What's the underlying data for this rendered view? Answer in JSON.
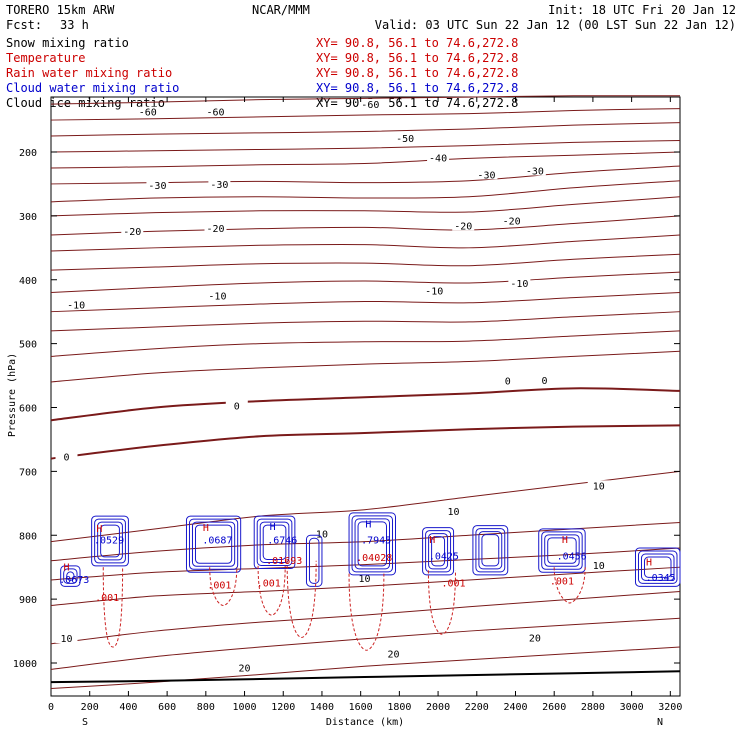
{
  "header": {
    "model": "TORERO  15km ARW",
    "center": "NCAR/MMM",
    "init": "Init: 18 UTC Fri 20 Jan 12",
    "fcst_label": "Fcst:",
    "fcst_value": "33 h",
    "valid": "Valid: 03 UTC Sun 22 Jan 12 (00 LST Sun 22 Jan 12)"
  },
  "fields": [
    {
      "name": "Snow mixing ratio",
      "xy": "XY=  90.8, 56.1 to  74.6,272.8",
      "color": "#000000",
      "xy_color": "#cc0000"
    },
    {
      "name": "Temperature",
      "xy": "XY=  90.8, 56.1 to  74.6,272.8",
      "color": "#cc0000",
      "xy_color": "#cc0000"
    },
    {
      "name": "Rain water mixing ratio",
      "xy": "XY=  90.8, 56.1 to  74.6,272.8",
      "color": "#cc0000",
      "xy_color": "#cc0000"
    },
    {
      "name": "Cloud water mixing ratio",
      "xy": "XY=  90.8, 56.1 to  74.6,272.8",
      "color": "#0000cc",
      "xy_color": "#0000cc"
    },
    {
      "name": "Cloud ice mixing ratio",
      "xy": "XY=  90.8, 56.1 to  74.6,272.8",
      "color": "#000000",
      "xy_color": "#000000"
    }
  ],
  "colors": {
    "temperature": "#7a1a1a",
    "rain": "#cc2222",
    "cloud_water": "#1a1acc",
    "cloud_ice": "#222222",
    "axis": "#000000"
  },
  "chart_data": {
    "type": "contour-cross-section",
    "xlabel": "Distance (km)",
    "ylabel": "Pressure (hPa)",
    "xlim": [
      0,
      3250
    ],
    "ylim_hpa": [
      1050,
      100
    ],
    "x_ticks": [
      0,
      200,
      400,
      600,
      800,
      1000,
      1200,
      1400,
      1600,
      1800,
      2000,
      2200,
      2400,
      2600,
      2800,
      3000,
      3200
    ],
    "y_ticks": [
      200,
      300,
      400,
      500,
      600,
      700,
      800,
      900,
      1000
    ],
    "endpoints": {
      "left": "S",
      "right": "N"
    },
    "temperature_contours": [
      {
        "p": [
          125,
          122,
          118,
          116,
          114,
          112,
          112
        ],
        "label": "-60",
        "label_at": [
          [
            500,
            140
          ],
          [
            850,
            140
          ],
          [
            1650,
            128
          ]
        ]
      },
      {
        "p": [
          150,
          148,
          145,
          142,
          140,
          135,
          132
        ],
        "label": "-60",
        "label_at": []
      },
      {
        "p": [
          175,
          172,
          170,
          168,
          164,
          158,
          154
        ],
        "label": "-50",
        "label_at": [
          [
            1830,
            181
          ]
        ]
      },
      {
        "p": [
          200,
          198,
          196,
          194,
          190,
          185,
          182
        ],
        "label": "",
        "label_at": []
      },
      {
        "p": [
          225,
          223,
          220,
          218,
          210,
          205,
          200
        ],
        "label": "-40",
        "label_at": [
          [
            2000,
            212
          ]
        ]
      },
      {
        "p": [
          250,
          248,
          246,
          248,
          245,
          232,
          222
        ],
        "label": "",
        "label_at": []
      },
      {
        "p": [
          278,
          272,
          270,
          272,
          270,
          256,
          245
        ],
        "label": "-30",
        "label_at": [
          [
            550,
            255
          ],
          [
            870,
            253
          ],
          [
            2250,
            238
          ],
          [
            2500,
            232
          ]
        ]
      },
      {
        "p": [
          300,
          295,
          292,
          292,
          294,
          282,
          270
        ],
        "label": "",
        "label_at": []
      },
      {
        "p": [
          330,
          324,
          320,
          318,
          322,
          312,
          300
        ],
        "label": "-20",
        "label_at": [
          [
            420,
            327
          ],
          [
            850,
            322
          ],
          [
            2130,
            318
          ],
          [
            2380,
            310
          ]
        ]
      },
      {
        "p": [
          355,
          350,
          346,
          345,
          350,
          340,
          330
        ],
        "label": "",
        "label_at": []
      },
      {
        "p": [
          385,
          380,
          375,
          374,
          378,
          368,
          360
        ],
        "label": "",
        "label_at": []
      },
      {
        "p": [
          420,
          412,
          405,
          402,
          405,
          396,
          388
        ],
        "label": "-10",
        "label_at": [
          [
            130,
            442
          ],
          [
            860,
            428
          ],
          [
            1980,
            420
          ],
          [
            2420,
            408
          ]
        ]
      },
      {
        "p": [
          450,
          444,
          438,
          434,
          436,
          428,
          420
        ],
        "label": "",
        "label_at": []
      },
      {
        "p": [
          480,
          474,
          468,
          465,
          466,
          458,
          450
        ],
        "label": "",
        "label_at": []
      },
      {
        "p": [
          520,
          508,
          500,
          497,
          496,
          488,
          480
        ],
        "label": "",
        "label_at": []
      },
      {
        "p": [
          560,
          546,
          538,
          532,
          528,
          520,
          512
        ],
        "label": "",
        "label_at": []
      },
      {
        "p": [
          620,
          600,
          590,
          584,
          578,
          570,
          574
        ],
        "label": "0",
        "label_at": [
          [
            960,
            600
          ],
          [
            2360,
            561
          ],
          [
            2550,
            560
          ]
        ]
      },
      {
        "p": [
          680,
          660,
          645,
          640,
          634,
          630,
          628
        ],
        "label": "0",
        "label_at": [
          [
            80,
            680
          ]
        ]
      },
      {
        "p": [
          810,
          790,
          770,
          760,
          740,
          720,
          700
        ],
        "label": "10",
        "label_at": [
          [
            1400,
            800
          ],
          [
            2080,
            765
          ],
          [
            2830,
            725
          ]
        ]
      },
      {
        "p": [
          840,
          825,
          815,
          810,
          800,
          790,
          780
        ],
        "label": "",
        "label_at": []
      },
      {
        "p": [
          870,
          858,
          852,
          846,
          838,
          830,
          820
        ],
        "label": "10",
        "label_at": [
          [
            1620,
            870
          ],
          [
            2830,
            850
          ]
        ]
      },
      {
        "p": [
          910,
          895,
          888,
          880,
          870,
          860,
          850
        ],
        "label": "",
        "label_at": []
      },
      {
        "p": [
          970,
          950,
          936,
          925,
          912,
          900,
          888
        ],
        "label": "10",
        "label_at": [
          [
            80,
            964
          ]
        ]
      },
      {
        "p": [
          1010,
          990,
          975,
          962,
          950,
          940,
          930
        ],
        "label": "20",
        "label_at": [
          [
            1770,
            988
          ],
          [
            2500,
            963
          ]
        ]
      },
      {
        "p": [
          1040,
          1030,
          1018,
          1005,
          995,
          985,
          975
        ],
        "label": "20",
        "label_at": [
          [
            1000,
            1010
          ]
        ]
      }
    ],
    "temperature_x": [
      0,
      540,
      1080,
      1620,
      2160,
      2700,
      3250
    ],
    "freezing_level_index": 16,
    "surface_p": [
      1030,
      1028,
      1025,
      1022,
      1019,
      1016,
      1013
    ],
    "hatched_cells": [
      {
        "x": [
          50,
          150
        ],
        "p": [
          848,
          880
        ]
      },
      {
        "x": [
          210,
          400
        ],
        "p": [
          770,
          848
        ]
      },
      {
        "x": [
          700,
          980
        ],
        "p": [
          770,
          858
        ]
      },
      {
        "x": [
          1050,
          1260
        ],
        "p": [
          770,
          852
        ]
      },
      {
        "x": [
          1320,
          1400
        ],
        "p": [
          800,
          880
        ]
      },
      {
        "x": [
          1540,
          1780
        ],
        "p": [
          765,
          862
        ]
      },
      {
        "x": [
          1920,
          2080
        ],
        "p": [
          788,
          862
        ]
      },
      {
        "x": [
          2180,
          2360
        ],
        "p": [
          785,
          862
        ]
      },
      {
        "x": [
          2520,
          2760
        ],
        "p": [
          790,
          858
        ]
      },
      {
        "x": [
          3020,
          3250
        ],
        "p": [
          820,
          880
        ]
      }
    ],
    "rain_shafts": [
      {
        "x": [
          270,
          370
        ],
        "p_top": 850,
        "p_bottom": 975
      },
      {
        "x": [
          820,
          960
        ],
        "p_top": 850,
        "p_bottom": 910
      },
      {
        "x": [
          1070,
          1210
        ],
        "p_top": 848,
        "p_bottom": 925
      },
      {
        "x": [
          1220,
          1370
        ],
        "p_top": 840,
        "p_bottom": 960
      },
      {
        "x": [
          1540,
          1720
        ],
        "p_top": 860,
        "p_bottom": 980
      },
      {
        "x": [
          1950,
          2090
        ],
        "p_top": 855,
        "p_bottom": 955
      },
      {
        "x": [
          2600,
          2760
        ],
        "p_top": 850,
        "p_bottom": 906
      }
    ],
    "annotations": [
      {
        "text": "H",
        "x": 80,
        "p": 855,
        "color": "#cc0000"
      },
      {
        "text": "H",
        "x": 250,
        "p": 795,
        "color": "#cc0000"
      },
      {
        "text": "H",
        "x": 800,
        "p": 793,
        "color": "#cc0000"
      },
      {
        "text": "H",
        "x": 1145,
        "p": 792,
        "color": "#0000cc"
      },
      {
        "text": "H",
        "x": 1640,
        "p": 788,
        "color": "#0000cc"
      },
      {
        "text": "H",
        "x": 1970,
        "p": 812,
        "color": "#cc0000"
      },
      {
        "text": "H",
        "x": 2655,
        "p": 812,
        "color": "#cc0000"
      },
      {
        "text": "H",
        "x": 3090,
        "p": 847,
        "color": "#cc0000"
      },
      {
        "text": ".0673",
        "x": 120,
        "p": 875,
        "color": "#0000cc"
      },
      {
        "text": ".0529",
        "x": 300,
        "p": 813,
        "color": "#0000cc"
      },
      {
        "text": ".0687",
        "x": 860,
        "p": 813,
        "color": "#0000cc"
      },
      {
        "text": ".6746",
        "x": 1195,
        "p": 813,
        "color": "#0000cc"
      },
      {
        "text": ".7945",
        "x": 1680,
        "p": 813,
        "color": "#0000cc"
      },
      {
        "text": ".0425",
        "x": 2030,
        "p": 838,
        "color": "#0000cc"
      },
      {
        "text": ".0456",
        "x": 2690,
        "p": 838,
        "color": "#0000cc"
      },
      {
        "text": ".0345",
        "x": 3150,
        "p": 872,
        "color": "#0000cc"
      },
      {
        "text": ".01693",
        "x": 1205,
        "p": 845,
        "color": "#cc0000"
      },
      {
        "text": ".04028",
        "x": 1670,
        "p": 840,
        "color": "#cc0000"
      },
      {
        "text": ".001",
        "x": 290,
        "p": 903,
        "color": "#cc0000"
      },
      {
        "text": ".001",
        "x": 870,
        "p": 883,
        "color": "#cc0000"
      },
      {
        "text": ".001",
        "x": 1125,
        "p": 880,
        "color": "#cc0000"
      },
      {
        "text": ".001",
        "x": 2080,
        "p": 880,
        "color": "#cc0000"
      },
      {
        "text": ".001",
        "x": 2640,
        "p": 877,
        "color": "#cc0000"
      }
    ]
  }
}
